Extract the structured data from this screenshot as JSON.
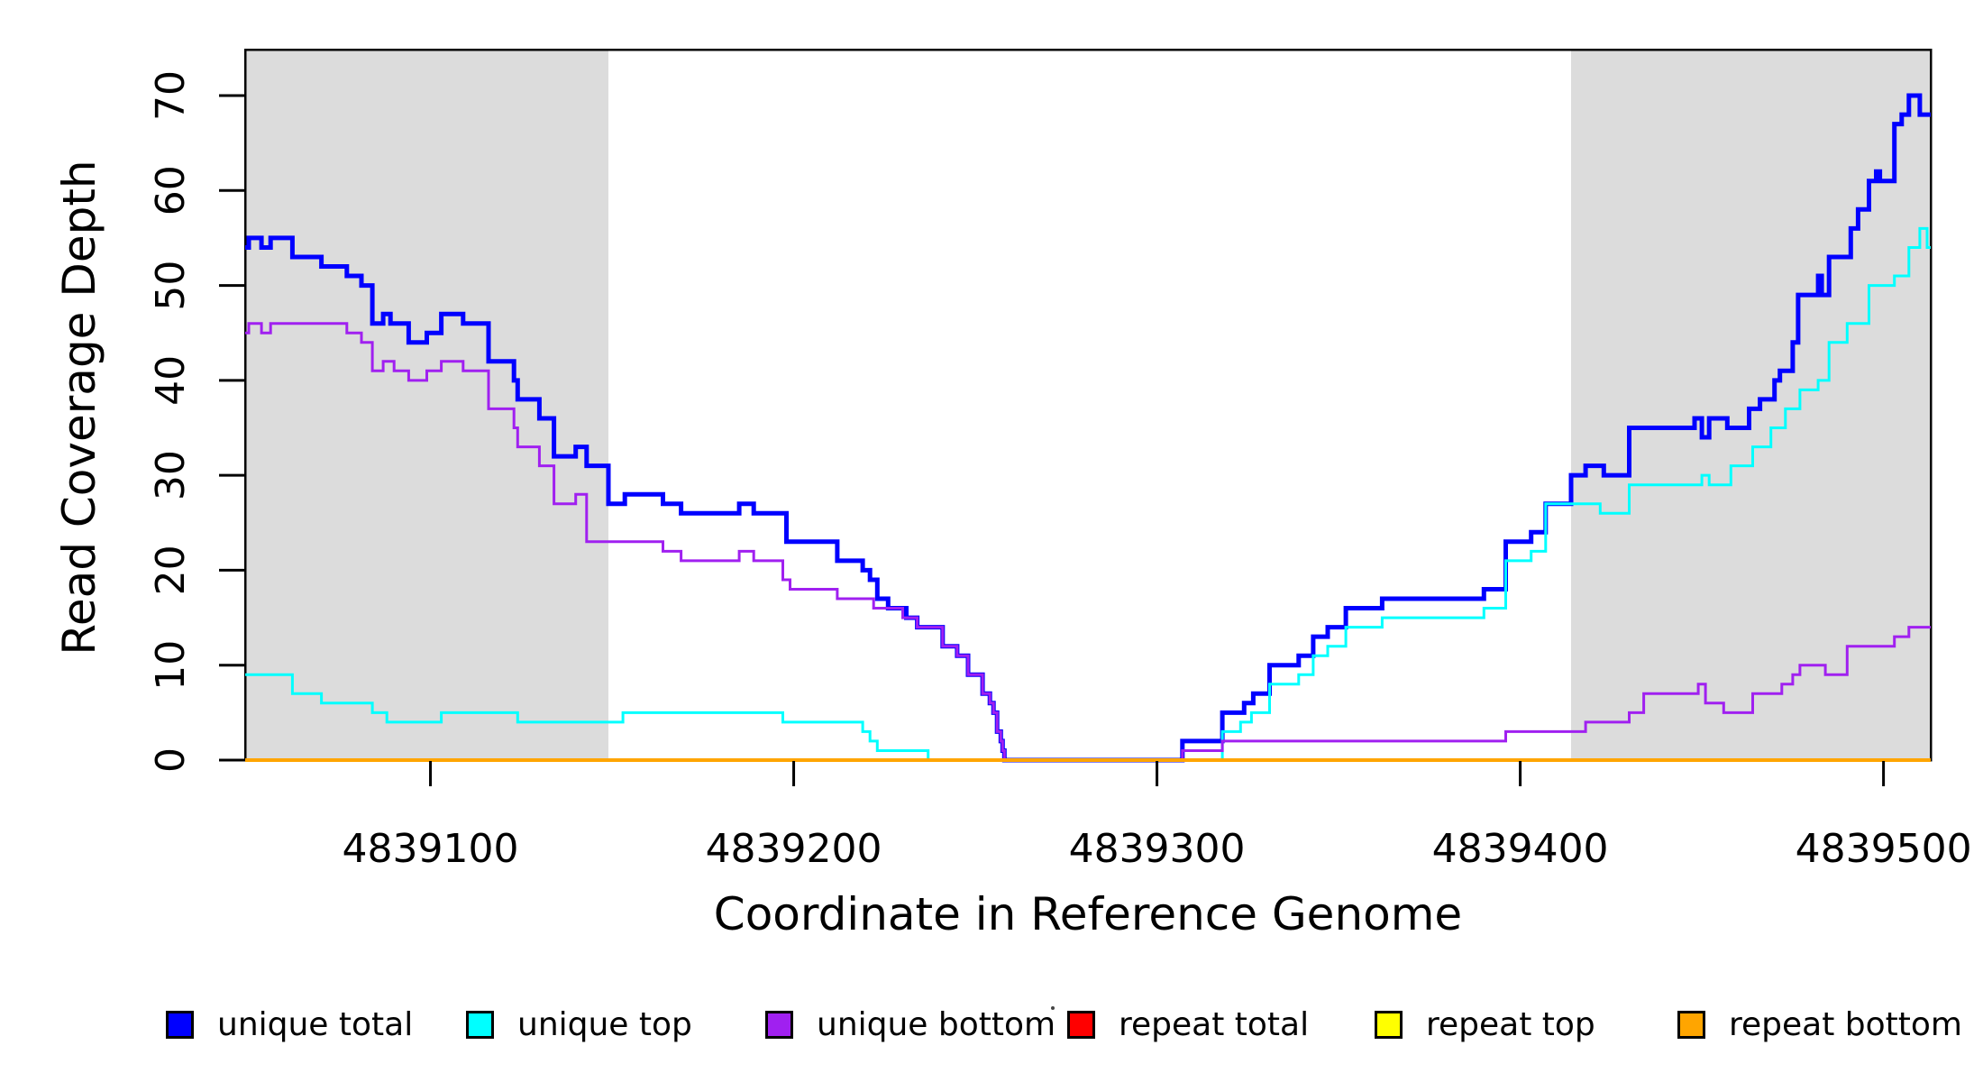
{
  "figure": {
    "background": "#FFFFFF",
    "plot_border_color": "#000000"
  },
  "chart_data": {
    "type": "line",
    "title": "",
    "xlabel": "Coordinate in Reference Genome",
    "ylabel": "Read Coverage Depth",
    "line_style": "step-after",
    "grid": false,
    "legend_position": "bottom",
    "xlim": [
      4839049,
      4839513
    ],
    "ylim": [
      0,
      75
    ],
    "x_ticks": [
      4839100,
      4839200,
      4839300,
      4839400,
      4839500
    ],
    "y_ticks": [
      0,
      10,
      20,
      30,
      40,
      50,
      60,
      70
    ],
    "shaded_regions": [
      {
        "x0": 4839049,
        "x1": 4839149,
        "color": "#DCDCDC"
      },
      {
        "x0": 4839414,
        "x1": 4839513,
        "color": "#DCDCDC"
      }
    ],
    "series": [
      {
        "name": "unique total",
        "color": "#0000FF",
        "width": 5,
        "points": [
          [
            4839049,
            54
          ],
          [
            4839050,
            55
          ],
          [
            4839053.5,
            54
          ],
          [
            4839056,
            55
          ],
          [
            4839062,
            53
          ],
          [
            4839070,
            52
          ],
          [
            4839077,
            51
          ],
          [
            4839081,
            50
          ],
          [
            4839084,
            46
          ],
          [
            4839087,
            47
          ],
          [
            4839089,
            46
          ],
          [
            4839094,
            44
          ],
          [
            4839099,
            45
          ],
          [
            4839103,
            47
          ],
          [
            4839109,
            46
          ],
          [
            4839116,
            42
          ],
          [
            4839123,
            40
          ],
          [
            4839124,
            38
          ],
          [
            4839130,
            36
          ],
          [
            4839134,
            32
          ],
          [
            4839140,
            33
          ],
          [
            4839143,
            31
          ],
          [
            4839149,
            27
          ],
          [
            4839153.5,
            28
          ],
          [
            4839164,
            27
          ],
          [
            4839169,
            26
          ],
          [
            4839185,
            27
          ],
          [
            4839189,
            26
          ],
          [
            4839198,
            23
          ],
          [
            4839212,
            21
          ],
          [
            4839219,
            20
          ],
          [
            4839221,
            19
          ],
          [
            4839223,
            17
          ],
          [
            4839226,
            16
          ],
          [
            4839231,
            15
          ],
          [
            4839234,
            14
          ],
          [
            4839241,
            12
          ],
          [
            4839245,
            11
          ],
          [
            4839248,
            9
          ],
          [
            4839252,
            7
          ],
          [
            4839254,
            6
          ],
          [
            4839255,
            5
          ],
          [
            4839256,
            3
          ],
          [
            4839257,
            2
          ],
          [
            4839257.5,
            1
          ],
          [
            4839258,
            0
          ],
          [
            4839307,
            2
          ],
          [
            4839318,
            5
          ],
          [
            4839324,
            6
          ],
          [
            4839326.5,
            7
          ],
          [
            4839331,
            10
          ],
          [
            4839339,
            11
          ],
          [
            4839343,
            13
          ],
          [
            4839347,
            14
          ],
          [
            4839352,
            16
          ],
          [
            4839362,
            17
          ],
          [
            4839390,
            18
          ],
          [
            4839396,
            23
          ],
          [
            4839403,
            24
          ],
          [
            4839407,
            27
          ],
          [
            4839414,
            30
          ],
          [
            4839418,
            31
          ],
          [
            4839423,
            30
          ],
          [
            4839430,
            35
          ],
          [
            4839448,
            36
          ],
          [
            4839450,
            34
          ],
          [
            4839452,
            36
          ],
          [
            4839457,
            35
          ],
          [
            4839463,
            37
          ],
          [
            4839466,
            38
          ],
          [
            4839470,
            40
          ],
          [
            4839471.5,
            41
          ],
          [
            4839475,
            44
          ],
          [
            4839476.5,
            49
          ],
          [
            4839482,
            51
          ],
          [
            4839483,
            49
          ],
          [
            4839485,
            53
          ],
          [
            4839491,
            56
          ],
          [
            4839493,
            58
          ],
          [
            4839496,
            61
          ],
          [
            4839498,
            62
          ],
          [
            4839499,
            61
          ],
          [
            4839503,
            67
          ],
          [
            4839505,
            68
          ],
          [
            4839507,
            70
          ],
          [
            4839510,
            68
          ]
        ]
      },
      {
        "name": "unique top",
        "color": "#00FFFF",
        "width": 3,
        "points": [
          [
            4839049,
            9
          ],
          [
            4839062,
            7
          ],
          [
            4839070,
            6
          ],
          [
            4839084,
            5
          ],
          [
            4839088,
            4
          ],
          [
            4839103,
            5
          ],
          [
            4839124,
            4
          ],
          [
            4839153,
            5
          ],
          [
            4839197,
            4
          ],
          [
            4839219,
            3
          ],
          [
            4839221,
            2
          ],
          [
            4839223,
            1
          ],
          [
            4839237,
            0
          ],
          [
            4839318,
            3
          ],
          [
            4839323,
            4
          ],
          [
            4839326,
            5
          ],
          [
            4839331,
            8
          ],
          [
            4839339,
            9
          ],
          [
            4839343,
            11
          ],
          [
            4839347,
            12
          ],
          [
            4839352,
            14
          ],
          [
            4839362,
            15
          ],
          [
            4839390,
            16
          ],
          [
            4839396,
            21
          ],
          [
            4839403,
            22
          ],
          [
            4839407,
            27
          ],
          [
            4839422,
            26
          ],
          [
            4839430,
            29
          ],
          [
            4839450,
            30
          ],
          [
            4839452,
            29
          ],
          [
            4839458,
            31
          ],
          [
            4839464,
            33
          ],
          [
            4839469,
            35
          ],
          [
            4839473,
            37
          ],
          [
            4839477,
            39
          ],
          [
            4839482,
            40
          ],
          [
            4839485,
            44
          ],
          [
            4839490,
            46
          ],
          [
            4839496,
            50
          ],
          [
            4839503,
            51
          ],
          [
            4839507,
            54
          ],
          [
            4839510,
            56
          ],
          [
            4839512,
            54
          ]
        ]
      },
      {
        "name": "unique bottom",
        "color": "#A020F0",
        "width": 3,
        "points": [
          [
            4839049,
            45
          ],
          [
            4839050,
            46
          ],
          [
            4839053.5,
            45
          ],
          [
            4839056,
            46
          ],
          [
            4839077,
            45
          ],
          [
            4839081,
            44
          ],
          [
            4839084,
            41
          ],
          [
            4839087,
            42
          ],
          [
            4839090,
            41
          ],
          [
            4839094,
            40
          ],
          [
            4839099,
            41
          ],
          [
            4839103,
            42
          ],
          [
            4839109,
            41
          ],
          [
            4839116,
            37
          ],
          [
            4839123,
            35
          ],
          [
            4839124,
            33
          ],
          [
            4839130,
            31
          ],
          [
            4839134,
            27
          ],
          [
            4839140,
            28
          ],
          [
            4839143,
            23
          ],
          [
            4839164,
            22
          ],
          [
            4839169,
            21
          ],
          [
            4839185,
            22
          ],
          [
            4839189,
            21
          ],
          [
            4839197,
            19
          ],
          [
            4839199,
            18
          ],
          [
            4839212,
            17
          ],
          [
            4839222,
            16
          ],
          [
            4839230,
            15
          ],
          [
            4839234,
            14
          ],
          [
            4839241,
            12
          ],
          [
            4839245,
            11
          ],
          [
            4839248,
            9
          ],
          [
            4839252,
            7
          ],
          [
            4839254,
            6
          ],
          [
            4839255,
            5
          ],
          [
            4839256,
            3
          ],
          [
            4839257,
            2
          ],
          [
            4839257.5,
            1
          ],
          [
            4839258,
            0
          ],
          [
            4839307,
            1
          ],
          [
            4839318,
            2
          ],
          [
            4839396,
            3
          ],
          [
            4839418,
            4
          ],
          [
            4839430,
            5
          ],
          [
            4839434,
            7
          ],
          [
            4839449,
            8
          ],
          [
            4839451,
            6
          ],
          [
            4839456,
            5
          ],
          [
            4839464,
            7
          ],
          [
            4839472,
            8
          ],
          [
            4839475,
            9
          ],
          [
            4839477,
            10
          ],
          [
            4839484,
            9
          ],
          [
            4839490,
            12
          ],
          [
            4839503,
            13
          ],
          [
            4839507,
            14
          ]
        ]
      },
      {
        "name": "repeat total",
        "color": "#FF0000",
        "width": 3,
        "points": [
          [
            4839049,
            0
          ]
        ]
      },
      {
        "name": "repeat top",
        "color": "#FFFF00",
        "width": 3,
        "points": [
          [
            4839049,
            0
          ]
        ]
      },
      {
        "name": "repeat bottom",
        "color": "#FFA500",
        "width": 4,
        "points": [
          [
            4839049,
            0
          ]
        ]
      }
    ]
  },
  "legend": {
    "labels": [
      "unique total",
      "unique top",
      "unique bottom",
      "repeat total",
      "repeat top",
      "repeat bottom"
    ],
    "colors": [
      "#0000FF",
      "#00FFFF",
      "#A020F0",
      "#FF0000",
      "#FFFF00",
      "#FFA500"
    ]
  }
}
